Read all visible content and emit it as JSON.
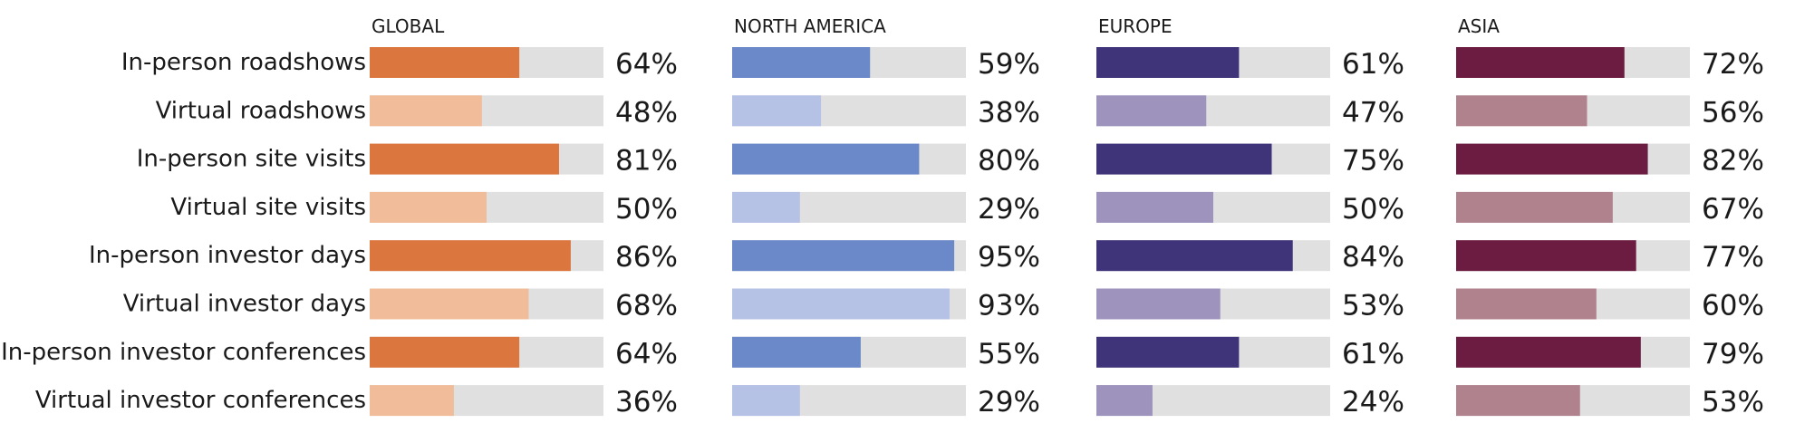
{
  "chart_data": {
    "type": "bar",
    "orientation": "horizontal",
    "value_suffix": "%",
    "xlim": [
      0,
      100
    ],
    "categories": [
      "In-person roadshows",
      "Virtual roadshows",
      "In-person site visits",
      "Virtual site visits",
      "In-person investor days",
      "Virtual investor days",
      "In-person investor conferences",
      "Virtual investor conferences"
    ],
    "panels": [
      {
        "title": "GLOBAL",
        "colors": {
          "in_person": "#dc763f",
          "virtual": "#f0bc9a",
          "track": "#e0e0e0"
        },
        "values": [
          64,
          48,
          81,
          50,
          86,
          68,
          64,
          36
        ]
      },
      {
        "title": "NORTH AMERICA",
        "colors": {
          "in_person": "#6b89c8",
          "virtual": "#b6c1e6",
          "track": "#e0e0e0"
        },
        "values": [
          59,
          38,
          80,
          29,
          95,
          93,
          55,
          29
        ]
      },
      {
        "title": "EUROPE",
        "colors": {
          "in_person": "#3f347a",
          "virtual": "#9e93bd",
          "track": "#e0e0e0"
        },
        "values": [
          61,
          47,
          75,
          50,
          84,
          53,
          61,
          24
        ]
      },
      {
        "title": "ASIA",
        "colors": {
          "in_person": "#6c1c41",
          "virtual": "#b0828e",
          "track": "#e0e0e0"
        },
        "values": [
          72,
          56,
          82,
          67,
          77,
          60,
          79,
          53
        ]
      }
    ]
  }
}
